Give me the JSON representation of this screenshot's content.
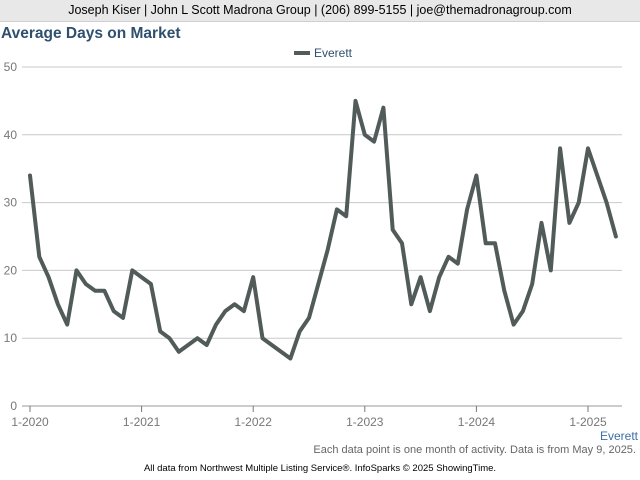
{
  "header": {
    "contact": "Joseph Kiser | John L Scott Madrona Group | (206) 899-5155 | joe@themadronagroup.com"
  },
  "chart_data": {
    "type": "line",
    "title": "Average Days on Market",
    "ylim": [
      0,
      50
    ],
    "yticks": [
      "0",
      "10",
      "20",
      "30",
      "40",
      "50"
    ],
    "x_tick_labels": [
      "1-2020",
      "1-2021",
      "1-2022",
      "1-2023",
      "1-2024",
      "1-2025"
    ],
    "x_start": "2020-01",
    "grid": true,
    "legend_placement": "top-center",
    "series": [
      {
        "name": "Everett",
        "color": "#515b59",
        "values": [
          34,
          22,
          19,
          15,
          12,
          20,
          18,
          17,
          17,
          14,
          13,
          20,
          19,
          18,
          11,
          10,
          8,
          9,
          10,
          9,
          12,
          14,
          15,
          14,
          19,
          10,
          9,
          8,
          7,
          11,
          13,
          18,
          23,
          29,
          28,
          45,
          40,
          39,
          44,
          26,
          24,
          15,
          19,
          14,
          19,
          22,
          21,
          29,
          34,
          24,
          24,
          17,
          12,
          14,
          18,
          27,
          20,
          38,
          27,
          30,
          38,
          34,
          30,
          25
        ]
      }
    ],
    "series_end_label": "Everett"
  },
  "footnote": "Each data point is one month of activity. Data is from May 9, 2025.",
  "credit": "All data from Northwest Multiple Listing Service®. InfoSparks © 2025 ShowingTime."
}
